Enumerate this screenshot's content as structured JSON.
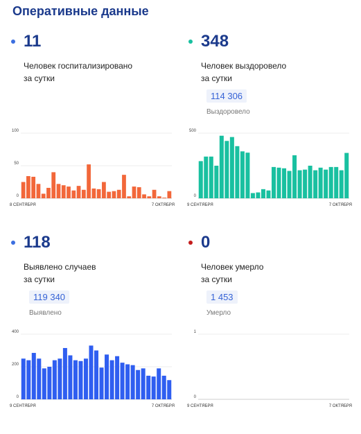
{
  "page": {
    "title": "Оперативные данные"
  },
  "colors": {
    "title": "#1b3a8c",
    "hospital": "#f2673a",
    "recovered": "#19c0a0",
    "cases": "#2f5ef0",
    "died": "#c41d1d",
    "dot_hospital": "#3c6fe0",
    "dot_recovered": "#19c0a0",
    "dot_cases": "#3c6fe0"
  },
  "cards": {
    "hospitalized": {
      "value": "11",
      "desc_line1": "Человек госпитализировано",
      "desc_line2": "за сутки"
    },
    "recovered": {
      "value": "348",
      "desc_line1": "Человек выздоровело",
      "desc_line2": "за сутки",
      "total": "114 306",
      "total_label": "Выздоровело"
    },
    "cases": {
      "value": "118",
      "desc_line1": "Выявлено случаев",
      "desc_line2": "за сутки",
      "total": "119 340",
      "total_label": "Выявлено"
    },
    "died": {
      "value": "0",
      "desc_line1": "Человек умерло",
      "desc_line2": "за сутки",
      "total": "1 453",
      "total_label": "Умерло"
    }
  },
  "chart_data": [
    {
      "id": "hospitalized",
      "type": "bar",
      "color": "#f2673a",
      "x_start_label": "8 СЕНТЯБРЯ",
      "x_end_label": "7 ОКТЯБРЯ",
      "y_ticks": [
        "0",
        "50",
        "100"
      ],
      "ylim": [
        0,
        100
      ],
      "values": [
        25,
        34,
        33,
        22,
        7,
        16,
        40,
        22,
        20,
        18,
        12,
        19,
        13,
        52,
        15,
        14,
        25,
        10,
        11,
        13,
        36,
        3,
        18,
        17,
        6,
        3,
        13,
        3,
        1,
        11
      ]
    },
    {
      "id": "recovered",
      "type": "bar",
      "color": "#19c0a0",
      "x_start_label": "9 СЕНТЯБРЯ",
      "x_end_label": "7 ОКТЯБРЯ",
      "y_ticks": [
        "0",
        "500"
      ],
      "ylim": [
        0,
        500
      ],
      "values": [
        285,
        320,
        320,
        250,
        480,
        440,
        470,
        400,
        360,
        350,
        40,
        45,
        70,
        60,
        240,
        235,
        230,
        210,
        330,
        215,
        220,
        250,
        215,
        235,
        220,
        240,
        240,
        215,
        348
      ]
    },
    {
      "id": "cases",
      "type": "bar",
      "color": "#2f5ef0",
      "x_start_label": "9 СЕНТЯБРЯ",
      "x_end_label": "7 ОКТЯБРЯ",
      "y_ticks": [
        "0",
        "200",
        "400"
      ],
      "ylim": [
        0,
        400
      ],
      "values": [
        250,
        240,
        285,
        250,
        190,
        200,
        240,
        250,
        315,
        270,
        240,
        235,
        250,
        330,
        300,
        195,
        275,
        240,
        265,
        225,
        215,
        210,
        180,
        190,
        145,
        140,
        190,
        145,
        118
      ]
    },
    {
      "id": "died",
      "type": "bar",
      "color": "#c41d1d",
      "x_start_label": "9 СЕНТЯБРЯ",
      "x_end_label": "7 ОКТЯБРЯ",
      "y_ticks": [
        "0",
        "1"
      ],
      "ylim": [
        0,
        1
      ],
      "values": []
    }
  ]
}
